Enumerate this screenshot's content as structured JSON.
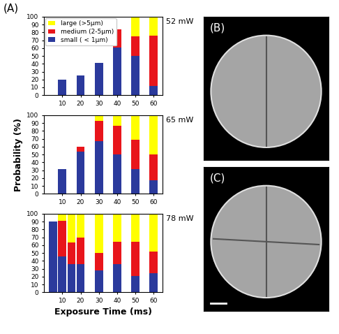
{
  "panel_label": "(A)",
  "chart_data": [
    {
      "type": "bar",
      "stacked": true,
      "title": "52 mW",
      "legend": "upper left",
      "x": [
        10,
        20,
        30,
        40,
        50,
        60
      ],
      "xlim": [
        0,
        65
      ],
      "xticks": [
        10,
        20,
        30,
        40,
        50,
        60
      ],
      "ylim": [
        0,
        100
      ],
      "yticks": [
        0,
        10,
        20,
        30,
        40,
        50,
        60,
        70,
        80,
        90,
        100
      ],
      "series": [
        {
          "name": "small ( < 1μm)",
          "color": "#2b3a9c",
          "values": [
            20,
            25,
            41,
            61,
            50,
            12
          ]
        },
        {
          "name": "medium (2-5μm)",
          "color": "#e8151b",
          "values": [
            null,
            null,
            null,
            23,
            25,
            64
          ]
        },
        {
          "name": "large (>5μm)",
          "color": "#ffff00",
          "values": [
            null,
            null,
            null,
            null,
            25,
            24
          ]
        }
      ]
    },
    {
      "type": "bar",
      "stacked": true,
      "title": "65 mW",
      "y_label": "Probability (%)",
      "x": [
        10,
        20,
        30,
        40,
        50,
        60
      ],
      "xlim": [
        0,
        65
      ],
      "xticks": [
        10,
        20,
        30,
        40,
        50,
        60
      ],
      "ylim": [
        0,
        100
      ],
      "yticks": [
        0,
        10,
        20,
        30,
        40,
        50,
        60,
        70,
        80,
        90,
        100
      ],
      "series": [
        {
          "name": "small ( < 1μm)",
          "color": "#2b3a9c",
          "values": [
            31,
            54,
            67,
            50,
            31,
            17
          ]
        },
        {
          "name": "medium (2-5μm)",
          "color": "#e8151b",
          "values": [
            null,
            6,
            26,
            37,
            38,
            33
          ]
        },
        {
          "name": "large (>5μm)",
          "color": "#ffff00",
          "values": [
            null,
            null,
            7,
            13,
            31,
            50
          ]
        }
      ]
    },
    {
      "type": "bar",
      "stacked": true,
      "title": "78 mW",
      "x_label": "Exposure Time (ms)",
      "x": [
        5,
        10,
        15,
        20,
        30,
        40,
        50,
        60
      ],
      "xlim": [
        0,
        65
      ],
      "xticks": [
        10,
        20,
        30,
        40,
        50,
        60
      ],
      "ylim": [
        0,
        100
      ],
      "yticks": [
        0,
        10,
        20,
        30,
        40,
        50,
        60,
        70,
        80,
        90,
        100
      ],
      "series": [
        {
          "name": "small ( < 1μm)",
          "color": "#2b3a9c",
          "values": [
            90,
            46,
            36,
            36,
            28,
            36,
            21,
            24
          ]
        },
        {
          "name": "medium (2-5μm)",
          "color": "#e8151b",
          "values": [
            null,
            45,
            27,
            34,
            22,
            28,
            43,
            28
          ]
        },
        {
          "name": "large (>5μm)",
          "color": "#ffff00",
          "values": [
            null,
            9,
            37,
            30,
            50,
            36,
            36,
            48
          ]
        }
      ]
    }
  ],
  "images": [
    {
      "label": "(B)"
    },
    {
      "label": "(C)"
    }
  ]
}
